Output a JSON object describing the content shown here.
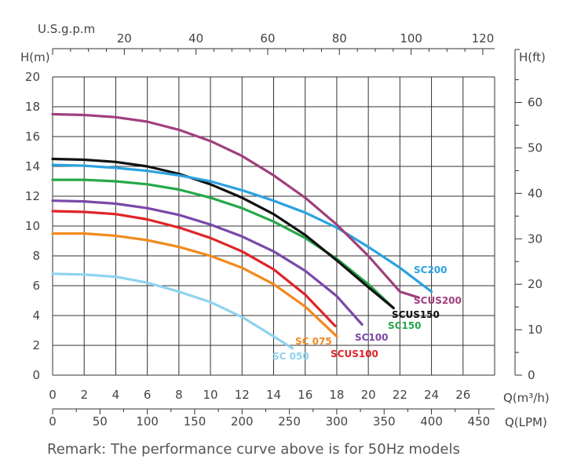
{
  "chart_data": {
    "type": "line",
    "xlabel": "Q(m³/h)",
    "ylabel": "H(m)",
    "y2label": "H(ft)",
    "top_axis_label": "U.S.g.p.m",
    "bottom2_axis_label": "Q(LPM)",
    "xlim": [
      0,
      28
    ],
    "ylim": [
      0,
      20
    ],
    "x_ticks": [
      "0",
      "2",
      "4",
      "6",
      "8",
      "10",
      "12",
      "14",
      "16",
      "18",
      "20",
      "22",
      "24",
      "26"
    ],
    "y_ticks": [
      "0",
      "2",
      "4",
      "6",
      "8",
      "10",
      "12",
      "14",
      "16",
      "18",
      "20"
    ],
    "y2_ticks": [
      "0",
      "10",
      "20",
      "30",
      "40",
      "50",
      "60"
    ],
    "top_ticks": [
      "20",
      "40",
      "60",
      "80",
      "100",
      "120"
    ],
    "lpm_ticks": [
      "0",
      "50",
      "100",
      "150",
      "200",
      "250",
      "300",
      "350",
      "400",
      "450"
    ],
    "grid": true,
    "series": [
      {
        "name": "SC 050",
        "color": "#8fd3f0",
        "x": [
          0,
          2,
          4,
          6,
          8,
          10,
          12,
          14,
          15.2
        ],
        "y": [
          6.8,
          6.75,
          6.6,
          6.2,
          5.6,
          4.9,
          3.9,
          2.6,
          1.8
        ]
      },
      {
        "name": "SC 075",
        "color": "#f28a1e",
        "x": [
          0,
          2,
          4,
          6,
          8,
          10,
          12,
          14,
          16,
          18
        ],
        "y": [
          9.5,
          9.5,
          9.35,
          9.05,
          8.6,
          8.0,
          7.2,
          6.1,
          4.6,
          2.6
        ]
      },
      {
        "name": "SCUS100",
        "color": "#e02428",
        "x": [
          0,
          2,
          4,
          6,
          8,
          10,
          12,
          14,
          16,
          17.9
        ],
        "y": [
          11.0,
          10.95,
          10.8,
          10.45,
          9.9,
          9.2,
          8.3,
          7.1,
          5.4,
          3.3
        ]
      },
      {
        "name": "SC100",
        "color": "#7b48a8",
        "x": [
          0,
          2,
          4,
          6,
          8,
          10,
          12,
          14,
          16,
          18,
          19.6
        ],
        "y": [
          11.7,
          11.65,
          11.5,
          11.2,
          10.75,
          10.1,
          9.3,
          8.3,
          7.0,
          5.3,
          3.4
        ]
      },
      {
        "name": "SC150",
        "color": "#26a84a",
        "x": [
          0,
          2,
          4,
          6,
          8,
          10,
          12,
          14,
          16,
          18,
          20,
          21.6
        ],
        "y": [
          13.1,
          13.1,
          13.0,
          12.8,
          12.45,
          11.9,
          11.2,
          10.3,
          9.2,
          7.8,
          6.1,
          4.5
        ]
      },
      {
        "name": "SCUS150",
        "color": "#111111",
        "x": [
          0,
          2,
          4,
          6,
          8,
          10,
          12,
          14,
          16,
          18,
          20,
          21.6
        ],
        "y": [
          14.5,
          14.45,
          14.3,
          14.0,
          13.5,
          12.8,
          11.9,
          10.8,
          9.4,
          7.7,
          5.9,
          4.5
        ]
      },
      {
        "name": "SC200",
        "color": "#2ba2e0",
        "x": [
          0,
          2,
          4,
          6,
          8,
          10,
          12,
          14,
          16,
          18,
          20,
          22,
          24
        ],
        "y": [
          14.1,
          14.05,
          13.9,
          13.7,
          13.4,
          13.0,
          12.4,
          11.7,
          10.9,
          9.9,
          8.6,
          7.2,
          5.6
        ]
      },
      {
        "name": "SCUS200",
        "color": "#a0407d",
        "x": [
          0,
          2,
          4,
          6,
          8,
          10,
          12,
          14,
          16,
          18,
          20,
          22,
          23.2
        ],
        "y": [
          17.5,
          17.45,
          17.3,
          17.0,
          16.45,
          15.7,
          14.7,
          13.4,
          11.9,
          10.1,
          8.0,
          5.6,
          5.2
        ]
      }
    ]
  },
  "remark": "Remark: The performance curve above is for 50Hz models"
}
